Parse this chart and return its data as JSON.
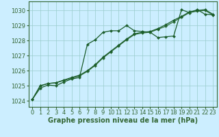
{
  "background_color": "#cceeff",
  "grid_color": "#99cccc",
  "line_color1": "#1a5c2a",
  "line_color2": "#2d6e35",
  "xlabel": "Graphe pression niveau de la mer (hPa)",
  "xlabel_fontsize": 7,
  "tick_fontsize": 6,
  "xlim": [
    -0.5,
    23.5
  ],
  "ylim": [
    1023.6,
    1030.6
  ],
  "yticks": [
    1024,
    1025,
    1026,
    1027,
    1028,
    1029,
    1030
  ],
  "xticks": [
    0,
    1,
    2,
    3,
    4,
    5,
    6,
    7,
    8,
    9,
    10,
    11,
    12,
    13,
    14,
    15,
    16,
    17,
    18,
    19,
    20,
    21,
    22,
    23
  ],
  "series": [
    {
      "x": [
        0,
        1,
        2,
        3,
        4,
        5,
        6,
        7,
        8,
        9,
        10,
        11,
        12,
        13,
        14,
        15,
        16,
        17,
        18,
        19,
        20,
        21,
        22,
        23
      ],
      "y": [
        1024.1,
        1024.85,
        1025.05,
        1025.0,
        1025.25,
        1025.45,
        1025.55,
        1027.75,
        1028.05,
        1028.55,
        1028.65,
        1028.65,
        1029.0,
        1028.65,
        1028.6,
        1028.55,
        1028.2,
        1028.25,
        1028.3,
        1030.05,
        1029.85,
        1030.05,
        1029.75,
        1029.7
      ],
      "color": "#1a5c2a",
      "lw": 0.9,
      "marker": "D",
      "ms": 2.2
    },
    {
      "x": [
        0,
        1,
        2,
        3,
        4,
        5,
        6,
        7,
        8,
        9,
        10,
        11,
        12,
        13,
        14,
        15,
        16,
        17,
        18,
        19,
        20,
        21,
        22,
        23
      ],
      "y": [
        1024.1,
        1025.0,
        1025.15,
        1025.2,
        1025.35,
        1025.5,
        1025.65,
        1025.95,
        1026.35,
        1026.85,
        1027.25,
        1027.65,
        1028.05,
        1028.4,
        1028.5,
        1028.55,
        1028.75,
        1028.95,
        1029.25,
        1029.55,
        1029.85,
        1029.95,
        1030.0,
        1029.7
      ],
      "color": "#2d6e35",
      "lw": 0.9,
      "marker": "D",
      "ms": 2.2
    },
    {
      "x": [
        0,
        1,
        2,
        3,
        4,
        5,
        6,
        7,
        8,
        9,
        10,
        11,
        12,
        13,
        14,
        15,
        16,
        17,
        18,
        19,
        20,
        21,
        22,
        23
      ],
      "y": [
        1024.1,
        1025.0,
        1025.15,
        1025.2,
        1025.38,
        1025.55,
        1025.7,
        1026.0,
        1026.4,
        1026.9,
        1027.3,
        1027.7,
        1028.1,
        1028.45,
        1028.55,
        1028.6,
        1028.8,
        1029.05,
        1029.35,
        1029.6,
        1029.9,
        1030.0,
        1030.05,
        1029.75
      ],
      "color": "#1a5c2a",
      "lw": 0.9,
      "marker": "D",
      "ms": 2.2
    }
  ],
  "spine_color": "#336633",
  "spine_lw": 0.8
}
